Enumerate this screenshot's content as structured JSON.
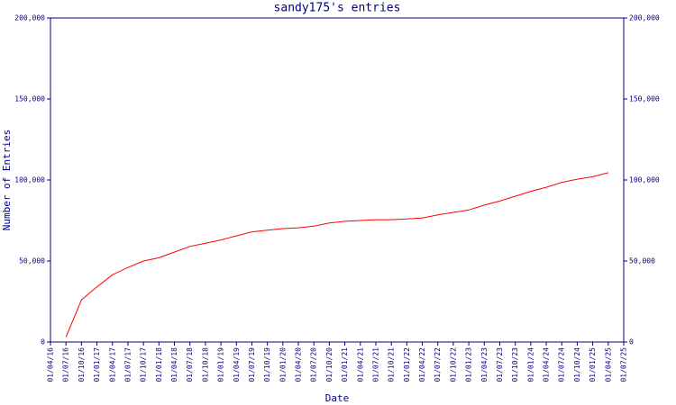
{
  "chart_data": {
    "type": "line",
    "title": "sandy175's entries",
    "x_label": "Date",
    "y_label": "Number of Entries",
    "categories": [
      "01/04/16",
      "01/07/16",
      "01/10/16",
      "01/01/17",
      "01/04/17",
      "01/07/17",
      "01/10/17",
      "01/01/18",
      "01/04/18",
      "01/07/18",
      "01/10/18",
      "01/01/19",
      "01/04/19",
      "01/07/19",
      "01/10/19",
      "01/01/20",
      "01/04/20",
      "01/07/20",
      "01/10/20",
      "01/01/21",
      "01/04/21",
      "01/07/21",
      "01/10/21",
      "01/01/22",
      "01/04/22",
      "01/07/22",
      "01/10/22",
      "01/01/23",
      "01/04/23",
      "01/07/23",
      "01/10/23",
      "01/01/24",
      "01/04/24",
      "01/07/24",
      "01/10/24",
      "01/01/25",
      "01/04/25",
      "01/07/25"
    ],
    "series": [
      {
        "color": "#ff0000",
        "values": [
          null,
          3000,
          26000,
          34000,
          41500,
          46000,
          50000,
          52000,
          55500,
          59000,
          61000,
          63000,
          65500,
          68000,
          69000,
          70000,
          70500,
          71500,
          73500,
          74500,
          75000,
          75500,
          75500,
          76000,
          76500,
          78500,
          80000,
          81500,
          84500,
          87000,
          90000,
          93000,
          95500,
          98500,
          100500,
          102000,
          104500,
          null
        ]
      }
    ],
    "ylim": [
      0,
      200000
    ],
    "yticks": [
      0,
      {
        "value": 50000,
        "label": "50,000"
      },
      {
        "value": 100000,
        "label": "100,000"
      },
      {
        "value": 150000,
        "label": "150,000"
      },
      {
        "value": 200000,
        "label": "200,000"
      }
    ],
    "axis_color": "#000080"
  }
}
